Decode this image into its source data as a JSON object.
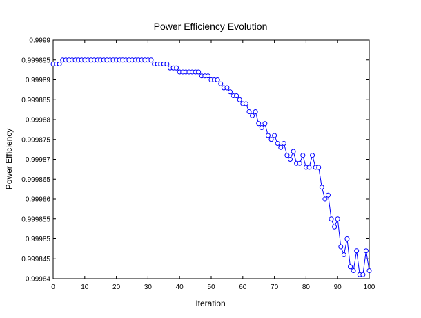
{
  "chart_data": {
    "type": "line",
    "title": "Power Efficiency Evolution",
    "xlabel": "Iteration",
    "ylabel": "Power Efficiency",
    "xlim": [
      0,
      100
    ],
    "ylim": [
      0.99984,
      0.9999
    ],
    "xticks": [
      0,
      10,
      20,
      30,
      40,
      50,
      60,
      70,
      80,
      90,
      100
    ],
    "yticks": [
      "0.99984",
      "0.999845",
      "0.99985",
      "0.999855",
      "0.99986",
      "0.999865",
      "0.99987",
      "0.999875",
      "0.99988",
      "0.999885",
      "0.99989",
      "0.999895",
      "0.9999"
    ],
    "grid": false,
    "legend": "none",
    "series_color": "#0000ff",
    "marker": "open-circle",
    "series": [
      {
        "x": [
          0,
          1,
          2,
          3,
          4,
          5,
          6,
          7,
          8,
          9,
          10,
          11,
          12,
          13,
          14,
          15,
          16,
          17,
          18,
          19,
          20,
          21,
          22,
          23,
          24,
          25,
          26,
          27,
          28,
          29,
          30,
          31,
          32,
          33,
          34,
          35,
          36,
          37,
          38,
          39,
          40,
          41,
          42,
          43,
          44,
          45,
          46,
          47,
          48,
          49,
          50,
          51,
          52,
          53,
          54,
          55,
          56,
          57,
          58,
          59,
          60,
          61,
          62,
          63,
          64,
          65,
          66,
          67,
          68,
          69,
          70,
          71,
          72,
          73,
          74,
          75,
          76,
          77,
          78,
          79,
          80,
          81,
          82,
          83,
          84,
          85,
          86,
          87,
          88,
          89,
          90,
          91,
          92,
          93,
          94,
          95,
          96,
          97,
          98,
          99,
          100
        ],
        "values": [
          0.999894,
          0.999894,
          0.999894,
          0.999895,
          0.999895,
          0.999895,
          0.999895,
          0.999895,
          0.999895,
          0.999895,
          0.999895,
          0.999895,
          0.999895,
          0.999895,
          0.999895,
          0.999895,
          0.999895,
          0.999895,
          0.999895,
          0.999895,
          0.999895,
          0.999895,
          0.999895,
          0.999895,
          0.999895,
          0.999895,
          0.999895,
          0.999895,
          0.999895,
          0.999895,
          0.999895,
          0.999895,
          0.999894,
          0.999894,
          0.999894,
          0.999894,
          0.999894,
          0.999893,
          0.999893,
          0.999893,
          0.999892,
          0.999892,
          0.999892,
          0.999892,
          0.999892,
          0.999892,
          0.999892,
          0.999891,
          0.999891,
          0.999891,
          0.99989,
          0.99989,
          0.99989,
          0.999889,
          0.999888,
          0.999888,
          0.999887,
          0.999886,
          0.999886,
          0.999885,
          0.999884,
          0.999884,
          0.999882,
          0.999881,
          0.999882,
          0.999879,
          0.999878,
          0.999879,
          0.999876,
          0.999875,
          0.999876,
          0.999874,
          0.999873,
          0.999874,
          0.999871,
          0.99987,
          0.999872,
          0.999869,
          0.999869,
          0.999871,
          0.999868,
          0.999868,
          0.999871,
          0.999868,
          0.999868,
          0.999863,
          0.99986,
          0.999861,
          0.999855,
          0.999853,
          0.999855,
          0.999848,
          0.999846,
          0.99985,
          0.999843,
          0.999842,
          0.999847,
          0.999841,
          0.999841,
          0.999847,
          0.999842
        ]
      }
    ]
  }
}
